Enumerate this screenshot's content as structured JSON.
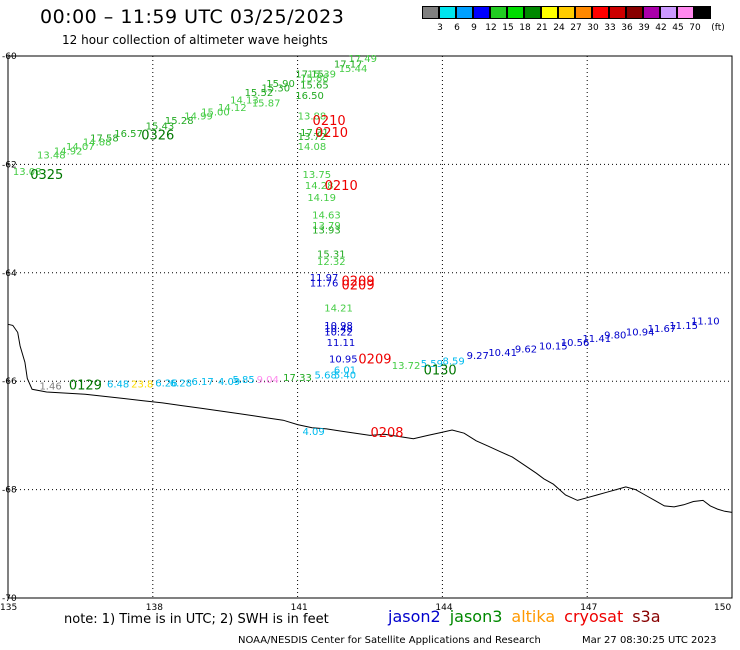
{
  "header": {
    "title": "00:00 – 11:59 UTC 03/25/2023",
    "subtitle": "12 hour collection of altimeter wave heights"
  },
  "colorbar": {
    "unit_label": "(ft)",
    "bins": [
      {
        "label": "3",
        "color": "#808080"
      },
      {
        "label": "6",
        "color": "#00e5ee"
      },
      {
        "label": "9",
        "color": "#00a0ff"
      },
      {
        "label": "12",
        "color": "#0000ff"
      },
      {
        "label": "15",
        "color": "#22cc22"
      },
      {
        "label": "18",
        "color": "#00dd00"
      },
      {
        "label": "21",
        "color": "#008800"
      },
      {
        "label": "24",
        "color": "#ffff00"
      },
      {
        "label": "27",
        "color": "#ffcc00"
      },
      {
        "label": "30",
        "color": "#ff8800"
      },
      {
        "label": "33",
        "color": "#ff0000"
      },
      {
        "label": "36",
        "color": "#cc0000"
      },
      {
        "label": "39",
        "color": "#880000"
      },
      {
        "label": "42",
        "color": "#aa00aa"
      },
      {
        "label": "45",
        "color": "#cc99ff"
      },
      {
        "label": "70",
        "color": "#ff88ee"
      },
      {
        "label": "",
        "color": "#000000"
      }
    ]
  },
  "map": {
    "lon_range": [
      135,
      150
    ],
    "lat_range": [
      -60,
      -70
    ],
    "lon_labels": [
      "135",
      "138",
      "141",
      "144",
      "147",
      "150"
    ],
    "lat_labels": [
      "-60",
      "-62",
      "-64",
      "-66",
      "-68",
      "-70"
    ],
    "observations": [
      {
        "text": "17.49",
        "lon": 142.3,
        "lat": -60.04,
        "color": "#44cc44"
      },
      {
        "text": "17.17",
        "lon": 142.0,
        "lat": -60.14,
        "color": "#22aa22"
      },
      {
        "text": "15.44",
        "lon": 142.1,
        "lat": -60.22,
        "color": "#44cc44"
      },
      {
        "text": "17.15",
        "lon": 141.2,
        "lat": -60.32,
        "color": "#22aa22"
      },
      {
        "text": "15.39",
        "lon": 141.45,
        "lat": -60.32,
        "color": "#44cc44"
      },
      {
        "text": "15.88",
        "lon": 141.3,
        "lat": -60.4,
        "color": "#44cc44"
      },
      {
        "text": "15.90",
        "lon": 140.6,
        "lat": -60.5,
        "color": "#22aa22"
      },
      {
        "text": "15.65",
        "lon": 141.3,
        "lat": -60.53,
        "color": "#22aa22"
      },
      {
        "text": "15.30",
        "lon": 140.5,
        "lat": -60.58,
        "color": "#22aa22"
      },
      {
        "text": "15.52",
        "lon": 140.15,
        "lat": -60.66,
        "color": "#22aa22"
      },
      {
        "text": "16.50",
        "lon": 141.2,
        "lat": -60.72,
        "color": "#22aa22"
      },
      {
        "text": "14.13",
        "lon": 139.85,
        "lat": -60.8,
        "color": "#44cc44"
      },
      {
        "text": "15.87",
        "lon": 140.3,
        "lat": -60.86,
        "color": "#44cc44"
      },
      {
        "text": "14.12",
        "lon": 139.6,
        "lat": -60.94,
        "color": "#44cc44"
      },
      {
        "text": "15.00",
        "lon": 139.25,
        "lat": -61.02,
        "color": "#44cc44"
      },
      {
        "text": "14.99",
        "lon": 138.9,
        "lat": -61.1,
        "color": "#44cc44"
      },
      {
        "text": "13.88",
        "lon": 141.25,
        "lat": -61.1,
        "color": "#44cc44"
      },
      {
        "text": "15.28",
        "lon": 138.5,
        "lat": -61.18,
        "color": "#22aa22"
      },
      {
        "text": "15.43",
        "lon": 138.1,
        "lat": -61.28,
        "color": "#22aa22"
      },
      {
        "text": "16.57",
        "lon": 137.45,
        "lat": -61.42,
        "color": "#22aa22"
      },
      {
        "text": "17.58",
        "lon": 136.95,
        "lat": -61.5,
        "color": "#22aa22"
      },
      {
        "text": "14.88",
        "lon": 136.8,
        "lat": -61.58,
        "color": "#44cc44"
      },
      {
        "text": "14.07",
        "lon": 136.45,
        "lat": -61.66,
        "color": "#44cc44"
      },
      {
        "text": "14.92",
        "lon": 136.2,
        "lat": -61.74,
        "color": "#44cc44"
      },
      {
        "text": "13.48",
        "lon": 135.85,
        "lat": -61.82,
        "color": "#44cc44"
      },
      {
        "text": "13.08",
        "lon": 135.35,
        "lat": -62.12,
        "color": "#44cc44"
      },
      {
        "text": "17.31",
        "lon": 141.3,
        "lat": -61.4,
        "color": "#22aa22"
      },
      {
        "text": "13.72",
        "lon": 141.25,
        "lat": -61.48,
        "color": "#22aa22"
      },
      {
        "text": "14.08",
        "lon": 141.25,
        "lat": -61.66,
        "color": "#44cc44"
      },
      {
        "text": "13.75",
        "lon": 141.35,
        "lat": -62.18,
        "color": "#44cc44"
      },
      {
        "text": "14.28",
        "lon": 141.4,
        "lat": -62.38,
        "color": "#44cc44"
      },
      {
        "text": "14.19",
        "lon": 141.45,
        "lat": -62.6,
        "color": "#44cc44"
      },
      {
        "text": "14.63",
        "lon": 141.55,
        "lat": -62.92,
        "color": "#44cc44"
      },
      {
        "text": "13.79",
        "lon": 141.55,
        "lat": -63.12,
        "color": "#44cc44"
      },
      {
        "text": "13.93",
        "lon": 141.55,
        "lat": -63.2,
        "color": "#22aa22"
      },
      {
        "text": "15.31",
        "lon": 141.65,
        "lat": -63.64,
        "color": "#22aa22"
      },
      {
        "text": "12.32",
        "lon": 141.65,
        "lat": -63.78,
        "color": "#44cc44"
      },
      {
        "text": "11.97",
        "lon": 141.5,
        "lat": -64.08,
        "color": "#0000cc"
      },
      {
        "text": "11.76",
        "lon": 141.5,
        "lat": -64.18,
        "color": "#0000cc"
      },
      {
        "text": "14.21",
        "lon": 141.8,
        "lat": -64.64,
        "color": "#44cc44"
      },
      {
        "text": "10.98",
        "lon": 141.8,
        "lat": -64.96,
        "color": "#0000cc"
      },
      {
        "text": "10.48",
        "lon": 141.8,
        "lat": -65.02,
        "color": "#0000cc"
      },
      {
        "text": "10.22",
        "lon": 141.8,
        "lat": -65.08,
        "color": "#0000cc"
      },
      {
        "text": "11.11",
        "lon": 141.85,
        "lat": -65.28,
        "color": "#0000cc"
      },
      {
        "text": "10.95",
        "lon": 141.9,
        "lat": -65.58,
        "color": "#0000cc"
      },
      {
        "text": "6.01",
        "lon": 142.0,
        "lat": -65.78,
        "color": "#00bbee"
      },
      {
        "text": "5.40",
        "lon": 142.0,
        "lat": -65.88,
        "color": "#00bbee"
      },
      {
        "text": "5.68",
        "lon": 141.6,
        "lat": -65.88,
        "color": "#00bbee"
      },
      {
        "text": "17.33",
        "lon": 140.95,
        "lat": -65.92,
        "color": "#22aa22"
      },
      {
        "text": "9.04",
        "lon": 140.4,
        "lat": -65.96,
        "color": "#ff88ee"
      },
      {
        "text": "5.85",
        "lon": 139.9,
        "lat": -65.96,
        "color": "#00bbee"
      },
      {
        "text": "6.17",
        "lon": 139.05,
        "lat": -66.0,
        "color": "#00bbee"
      },
      {
        "text": "4.09",
        "lon": 139.6,
        "lat": -66.0,
        "color": "#00bbee"
      },
      {
        "text": "6.26",
        "lon": 138.3,
        "lat": -66.02,
        "color": "#00bbee"
      },
      {
        "text": "6.28",
        "lon": 138.6,
        "lat": -66.02,
        "color": "#00bbee"
      },
      {
        "text": "23.8",
        "lon": 137.8,
        "lat": -66.04,
        "color": "#ffdd00"
      },
      {
        "text": "6.48",
        "lon": 137.3,
        "lat": -66.04,
        "color": "#00bbee"
      },
      {
        "text": "1.46",
        "lon": 135.9,
        "lat": -66.08,
        "color": "#808080"
      },
      {
        "text": "13.72",
        "lon": 143.2,
        "lat": -65.7,
        "color": "#44cc44"
      },
      {
        "text": "5.59",
        "lon": 143.8,
        "lat": -65.66,
        "color": "#00bbee"
      },
      {
        "text": "8.59",
        "lon": 144.25,
        "lat": -65.62,
        "color": "#00bbee"
      },
      {
        "text": "9.27",
        "lon": 144.75,
        "lat": -65.52,
        "color": "#0000cc"
      },
      {
        "text": "10.41",
        "lon": 145.2,
        "lat": -65.46,
        "color": "#0000cc"
      },
      {
        "text": "9.62",
        "lon": 145.75,
        "lat": -65.4,
        "color": "#0000cc"
      },
      {
        "text": "10.15",
        "lon": 146.25,
        "lat": -65.34,
        "color": "#0000cc"
      },
      {
        "text": "10.56",
        "lon": 146.7,
        "lat": -65.28,
        "color": "#0000cc"
      },
      {
        "text": "11.41",
        "lon": 147.15,
        "lat": -65.2,
        "color": "#0000cc"
      },
      {
        "text": "9.80",
        "lon": 147.6,
        "lat": -65.14,
        "color": "#0000cc"
      },
      {
        "text": "10.94",
        "lon": 148.05,
        "lat": -65.08,
        "color": "#0000cc"
      },
      {
        "text": "11.67",
        "lon": 148.5,
        "lat": -65.02,
        "color": "#0000cc"
      },
      {
        "text": "11.15",
        "lon": 148.95,
        "lat": -64.96,
        "color": "#0000cc"
      },
      {
        "text": "11.10",
        "lon": 149.4,
        "lat": -64.88,
        "color": "#0000cc"
      },
      {
        "text": "4.09",
        "lon": 141.35,
        "lat": -66.92,
        "color": "#00bbee"
      }
    ],
    "time_labels": [
      {
        "text": "0210",
        "lon": 141.6,
        "lat": -61.18,
        "color": "#ee0000"
      },
      {
        "text": "0210",
        "lon": 141.65,
        "lat": -61.4,
        "color": "#ee0000"
      },
      {
        "text": "0210",
        "lon": 141.85,
        "lat": -62.38,
        "color": "#ee0000"
      },
      {
        "text": "0209",
        "lon": 142.2,
        "lat": -64.14,
        "color": "#ee0000"
      },
      {
        "text": "0209",
        "lon": 142.2,
        "lat": -64.22,
        "color": "#ee0000"
      },
      {
        "text": "0209",
        "lon": 142.55,
        "lat": -65.58,
        "color": "#ee0000"
      },
      {
        "text": "0208",
        "lon": 142.8,
        "lat": -66.94,
        "color": "#ee0000"
      },
      {
        "text": "0326",
        "lon": 138.05,
        "lat": -61.45,
        "color": "#007700"
      },
      {
        "text": "0325",
        "lon": 135.75,
        "lat": -62.18,
        "color": "#007700"
      },
      {
        "text": "0129",
        "lon": 136.55,
        "lat": -66.06,
        "color": "#007700"
      },
      {
        "text": "0130",
        "lon": 143.9,
        "lat": -65.78,
        "color": "#007700"
      }
    ]
  },
  "footer": {
    "note": "note:  1) Time is in UTC;  2) SWH is in feet",
    "legend": [
      {
        "label": "jason2",
        "color": "#0000cc"
      },
      {
        "label": "jason3",
        "color": "#008800"
      },
      {
        "label": "altika",
        "color": "#ff9900"
      },
      {
        "label": "cryosat",
        "color": "#ee0000"
      },
      {
        "label": "s3a",
        "color": "#880000"
      }
    ],
    "credit": "NOAA/NESDIS Center for Satellite Applications and Research",
    "generated": "Mar 27 08:30:25 UTC 2023"
  }
}
